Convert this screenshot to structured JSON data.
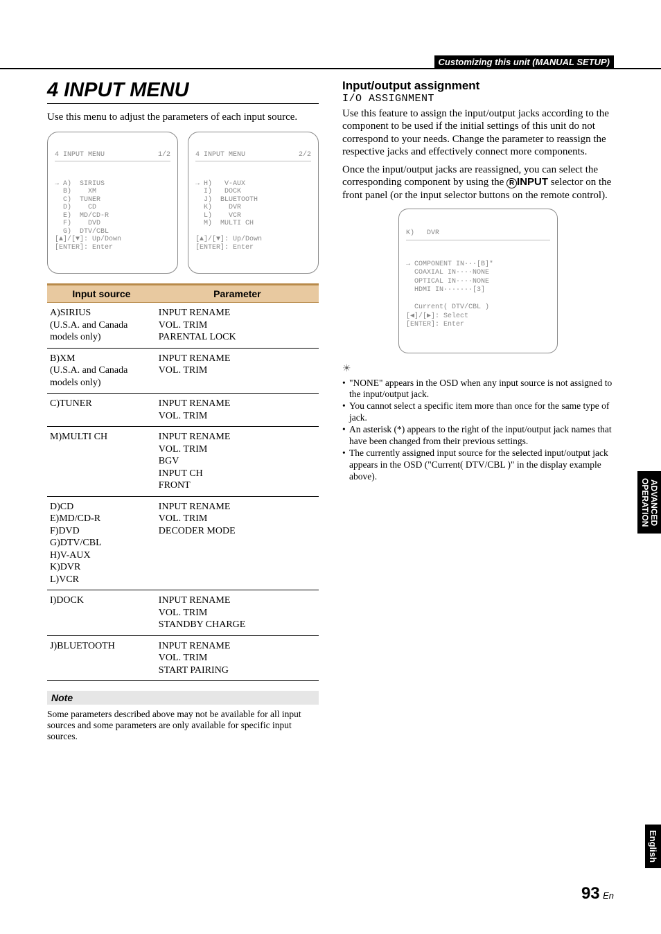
{
  "header": {
    "text": "Customizing this unit (MANUAL SETUP)"
  },
  "left": {
    "title": "4 INPUT MENU",
    "intro": "Use this menu to adjust the parameters of each input source.",
    "osd1": {
      "head_left": "4 INPUT MENU",
      "head_right": "1/2",
      "body": "→ A)  SIRIUS\n  B)    XM\n  C)  TUNER\n  D)    CD\n  E)  MD/CD-R\n  F)    DVD\n  G)  DTV/CBL\n[▲]/[▼]: Up/Down\n[ENTER]: Enter"
    },
    "osd2": {
      "head_left": "4 INPUT MENU",
      "head_right": "2/2",
      "body": "→ H)   V-AUX\n  I)   DOCK\n  J)  BLUETOOTH\n  K)    DVR\n  L)    VCR\n  M)  MULTI CH\n\n[▲]/[▼]: Up/Down\n[ENTER]: Enter"
    },
    "table": {
      "head": {
        "c1": "Input source",
        "c2": "Parameter"
      },
      "rows": [
        {
          "src": "A)SIRIUS\n(U.S.A. and Canada models only)",
          "param": "INPUT RENAME\nVOL. TRIM\nPARENTAL LOCK"
        },
        {
          "src": "B)XM\n(U.S.A. and Canada models only)",
          "param": "INPUT RENAME\nVOL. TRIM"
        },
        {
          "src": "C)TUNER",
          "param": "INPUT RENAME\nVOL. TRIM"
        },
        {
          "src": "M)MULTI CH",
          "param": "INPUT RENAME\nVOL. TRIM\nBGV\nINPUT CH\nFRONT"
        },
        {
          "src": "D)CD\nE)MD/CD-R\nF)DVD\nG)DTV/CBL\nH)V-AUX\nK)DVR\nL)VCR",
          "param": "INPUT RENAME\nVOL. TRIM\nDECODER MODE"
        },
        {
          "src": "I)DOCK",
          "param": "INPUT RENAME\nVOL. TRIM\nSTANDBY CHARGE"
        },
        {
          "src": "J)BLUETOOTH",
          "param": "INPUT RENAME\nVOL. TRIM\nSTART PAIRING"
        }
      ]
    },
    "note_label": "Note",
    "note_body": "Some parameters described above may not be available for all input sources and some parameters are only available for specific input sources."
  },
  "right": {
    "sub_h": "Input/output assignment",
    "mono": "I/O ASSIGNMENT",
    "p1": "Use this feature to assign the input/output jacks according to the component to be used if the initial settings of this unit do not correspond to your needs. Change the parameter to reassign the respective jacks and effectively connect more components.",
    "p2a": "Once the input/output jacks are reassigned, you can select the corresponding component by using the ",
    "p2_ring": "R",
    "p2_bold": "INPUT",
    "p2b": " selector on the front panel (or the input selector buttons on the remote control).",
    "osd": {
      "head": "K)   DVR",
      "body": "→ COMPONENT IN···[B]*\n  COAXIAL IN····NONE\n  OPTICAL IN····NONE\n  HDMI IN·······[3]\n\n  Current( DTV/CBL )\n[◀]/[▶]: Select\n[ENTER]: Enter"
    },
    "tips_icon": "☀",
    "tips": [
      "\"NONE\" appears in the OSD when any input source is not assigned to the input/output jack.",
      "You cannot select a specific item more than once for the same type of jack.",
      "An asterisk (*) appears to the right of the input/output jack names that have been changed from their previous settings.",
      "The currently assigned input source for the selected input/output jack appears in the OSD (\"Current( DTV/CBL )\" in the display example above)."
    ]
  },
  "side": {
    "tab1": "ADVANCED\nOPERATION",
    "tab2": "English"
  },
  "page": {
    "num": "93",
    "suffix": "En"
  }
}
